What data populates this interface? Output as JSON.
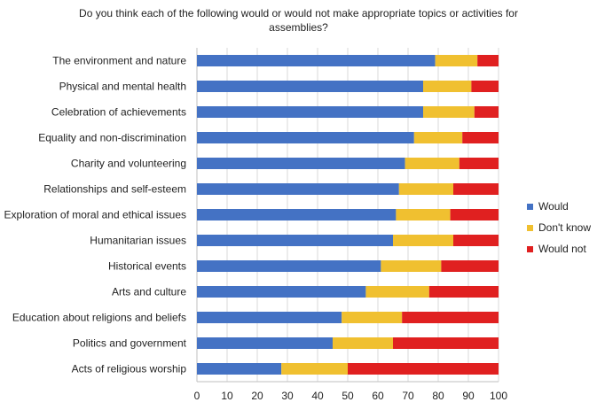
{
  "chart_data": {
    "type": "bar",
    "orientation": "horizontal",
    "stacked": true,
    "title_lines": [
      "Do you think each of the following would or would not make appropriate topics or activities for",
      "assemblies?"
    ],
    "categories": [
      "The environment and nature",
      "Physical and mental health",
      "Celebration of achievements",
      "Equality and non-discrimination",
      "Charity and volunteering",
      "Relationships and self-esteem",
      "Exploration of moral and ethical issues",
      "Humanitarian issues",
      "Historical events",
      "Arts and culture",
      "Education about religions and beliefs",
      "Politics and government",
      "Acts of religious worship"
    ],
    "series": [
      {
        "name": "Would",
        "color": "#4472c4",
        "values": [
          79,
          75,
          75,
          72,
          69,
          67,
          66,
          65,
          61,
          56,
          48,
          45,
          28
        ]
      },
      {
        "name": "Don't know",
        "color": "#f0c030",
        "values": [
          14,
          16,
          17,
          16,
          18,
          18,
          18,
          20,
          20,
          21,
          20,
          20,
          22
        ]
      },
      {
        "name": "Would not",
        "color": "#e02020",
        "values": [
          7,
          9,
          8,
          12,
          13,
          15,
          16,
          15,
          19,
          23,
          32,
          35,
          50
        ]
      }
    ],
    "xlim": [
      0,
      100
    ],
    "xticks": [
      0,
      10,
      20,
      30,
      40,
      50,
      60,
      70,
      80,
      90,
      100
    ],
    "grid": "vertical",
    "legend": "right"
  }
}
